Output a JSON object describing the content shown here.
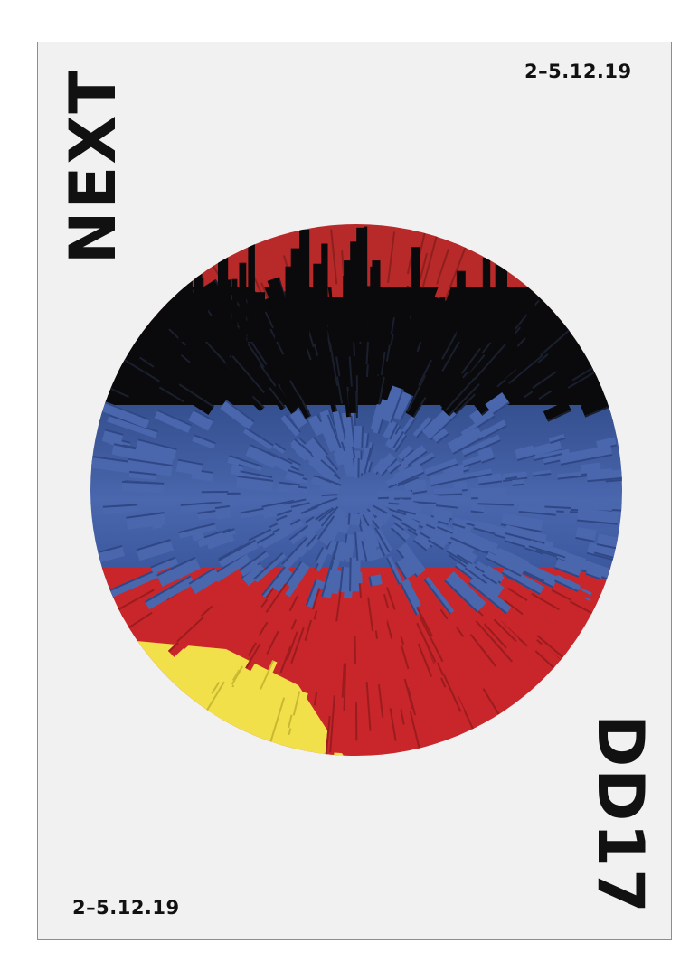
{
  "poster": {
    "title": "NEXT",
    "edition": "DD17",
    "date_top": "2–5.12.19",
    "date_bottom": "2–5.12.19"
  },
  "colors": {
    "background": "#f1f1f1",
    "black": "#0a0a0c",
    "blue": "#3f5ca5",
    "red": "#c8262a",
    "yellow": "#f1e04a",
    "text": "#111111"
  },
  "artwork": {
    "name": "exploding-bars-disc"
  }
}
